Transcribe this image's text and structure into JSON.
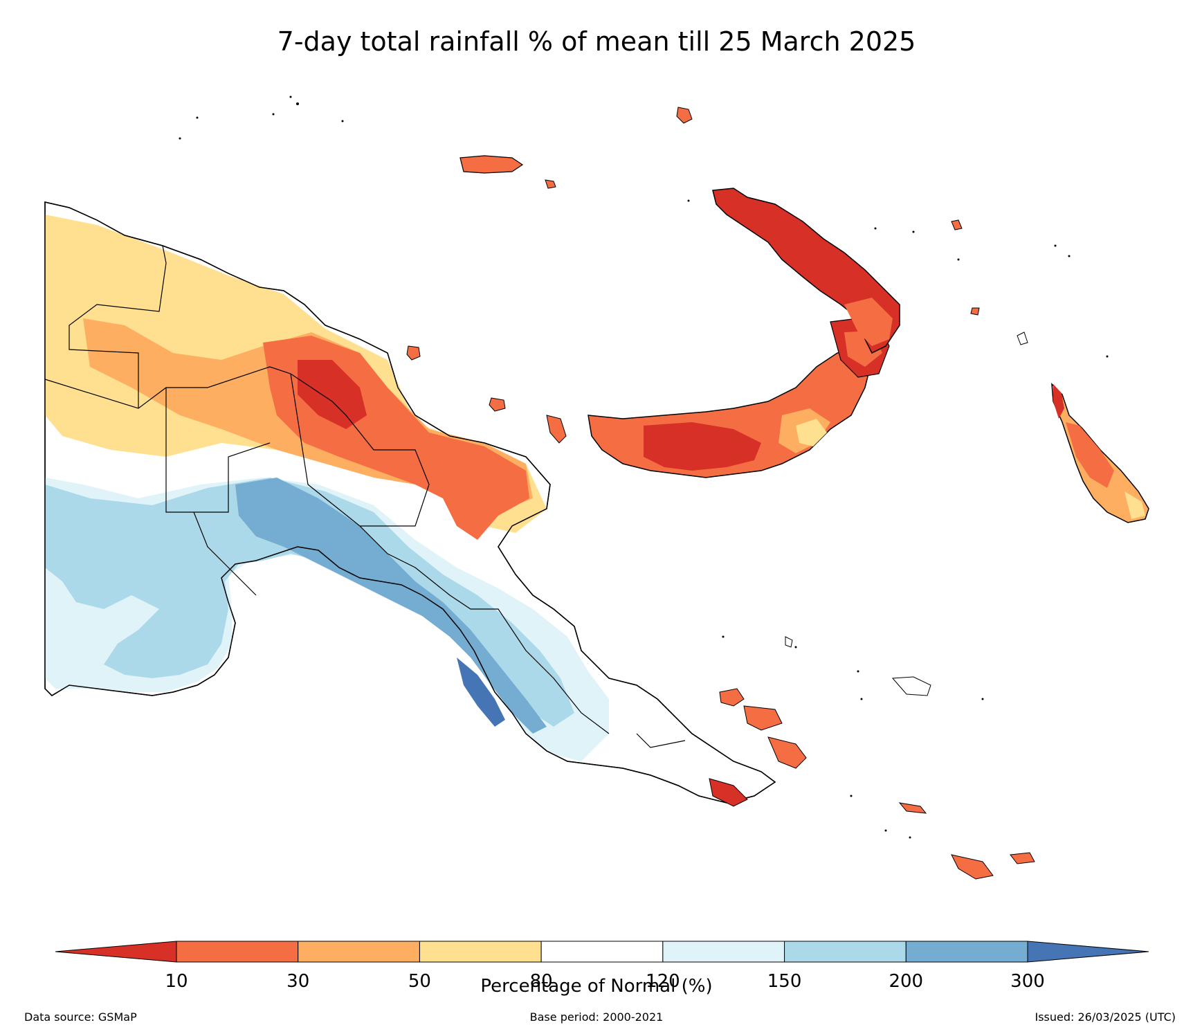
{
  "title": "7-day total rainfall % of mean till 25 March 2025",
  "legend": {
    "title": "Percentage of Normal (%)",
    "ticks": [
      "10",
      "30",
      "50",
      "80",
      "120",
      "150",
      "200",
      "300"
    ],
    "colors": [
      "#d73027",
      "#f46d43",
      "#fdae61",
      "#fee090",
      "#ffffff",
      "#e0f3f8",
      "#abd9e9",
      "#74add1",
      "#4575b4"
    ]
  },
  "footer": {
    "source": "Data source: GSMaP",
    "base_period": "Base period: 2000-2021",
    "issued": "Issued: 26/03/2025 (UTC)"
  }
}
